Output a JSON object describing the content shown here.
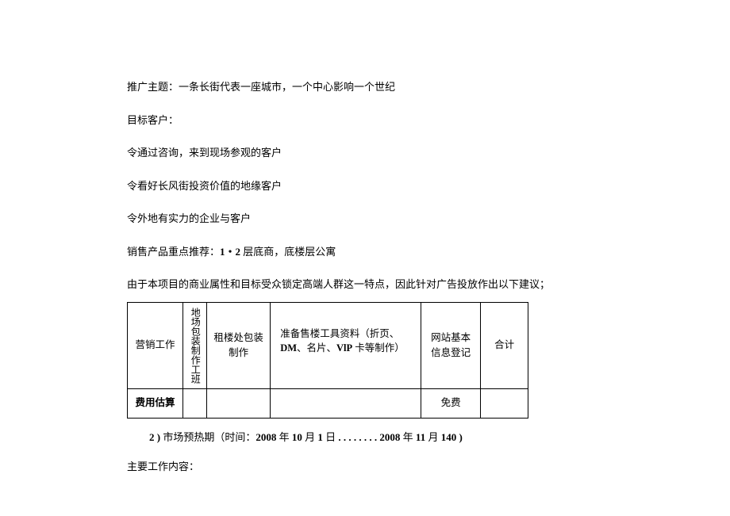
{
  "paragraphs": {
    "p1": "推广主题：一条长街代表一座城市，一个中心影响一个世纪",
    "p2": "目标客户：",
    "p3": "令通过咨询，来到现场参观的客户",
    "p4": "令看好长风街投资价值的地缘客户",
    "p5": "令外地有实力的企业与客户",
    "p6_prefix": "销售产品重点推荐：",
    "p6_bold": "1・2",
    "p6_suffix": " 层底商，底楼层公寓",
    "p7": "由于本项目的商业属性和目标受众锁定高端人群这一特点，因此针对广告投放作出以下建议；"
  },
  "table": {
    "row1": {
      "c1": "营销工作",
      "c2": "地场包装制作工班",
      "c3": "租楼处包装制作",
      "c4_prefix": "准备售楼工具资料（折页、",
      "c4_bold1": "DM",
      "c4_mid": "、名片、",
      "c4_bold2": "VlP",
      "c4_suffix": " 卡等制作）",
      "c5": "网站基本信息登记",
      "c6": "合计"
    },
    "row2": {
      "c1": "费用估算",
      "c2": "",
      "c3": "",
      "c4": "",
      "c5": "免费",
      "c6": ""
    }
  },
  "footer": {
    "line1_prefix": "2 )",
    "line1_text": " 市场预热期（时间：",
    "line1_bold1": "2008",
    "line1_mid1": " 年 ",
    "line1_bold2": "10",
    "line1_mid2": " 月 ",
    "line1_bold3": "1",
    "line1_mid3": " 日",
    "line1_dots": " . . . . . . . . ",
    "line1_bold4": "2008",
    "line1_mid4": " 年 ",
    "line1_bold5": "11",
    "line1_mid5": " 月 ",
    "line1_bold6": "140 )",
    "line2": "主要工作内容："
  }
}
